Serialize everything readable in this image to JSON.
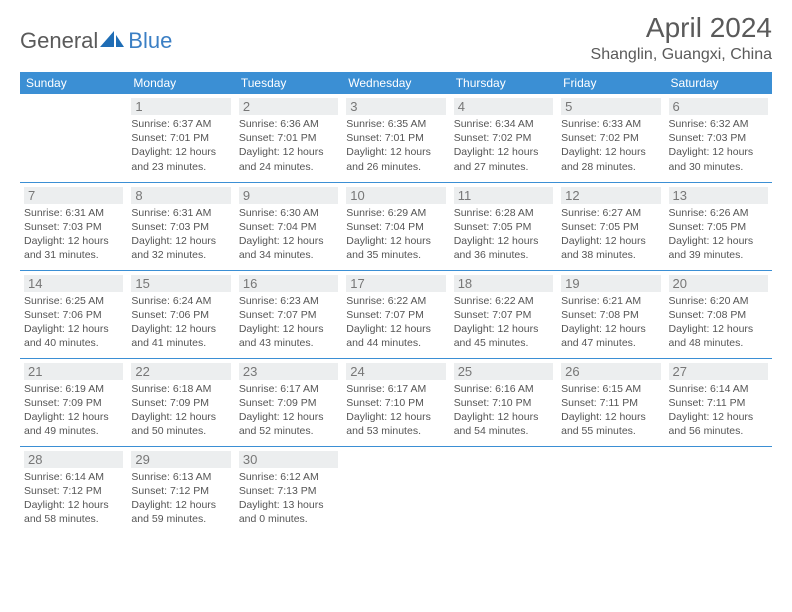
{
  "logo": {
    "part1": "General",
    "part2": "Blue",
    "brand_color": "#1f6db5"
  },
  "title": "April 2024",
  "location": "Shanglin, Guangxi, China",
  "colors": {
    "header_bg": "#3b8fd4",
    "header_text": "#ffffff",
    "border": "#3b8fd4",
    "daynum_bg": "#eceeef",
    "text": "#555555",
    "bg": "#ffffff"
  },
  "day_labels": [
    "Sunday",
    "Monday",
    "Tuesday",
    "Wednesday",
    "Thursday",
    "Friday",
    "Saturday"
  ],
  "weeks": [
    [
      null,
      {
        "n": "1",
        "sr": "Sunrise: 6:37 AM",
        "ss": "Sunset: 7:01 PM",
        "d1": "Daylight: 12 hours",
        "d2": "and 23 minutes."
      },
      {
        "n": "2",
        "sr": "Sunrise: 6:36 AM",
        "ss": "Sunset: 7:01 PM",
        "d1": "Daylight: 12 hours",
        "d2": "and 24 minutes."
      },
      {
        "n": "3",
        "sr": "Sunrise: 6:35 AM",
        "ss": "Sunset: 7:01 PM",
        "d1": "Daylight: 12 hours",
        "d2": "and 26 minutes."
      },
      {
        "n": "4",
        "sr": "Sunrise: 6:34 AM",
        "ss": "Sunset: 7:02 PM",
        "d1": "Daylight: 12 hours",
        "d2": "and 27 minutes."
      },
      {
        "n": "5",
        "sr": "Sunrise: 6:33 AM",
        "ss": "Sunset: 7:02 PM",
        "d1": "Daylight: 12 hours",
        "d2": "and 28 minutes."
      },
      {
        "n": "6",
        "sr": "Sunrise: 6:32 AM",
        "ss": "Sunset: 7:03 PM",
        "d1": "Daylight: 12 hours",
        "d2": "and 30 minutes."
      }
    ],
    [
      {
        "n": "7",
        "sr": "Sunrise: 6:31 AM",
        "ss": "Sunset: 7:03 PM",
        "d1": "Daylight: 12 hours",
        "d2": "and 31 minutes."
      },
      {
        "n": "8",
        "sr": "Sunrise: 6:31 AM",
        "ss": "Sunset: 7:03 PM",
        "d1": "Daylight: 12 hours",
        "d2": "and 32 minutes."
      },
      {
        "n": "9",
        "sr": "Sunrise: 6:30 AM",
        "ss": "Sunset: 7:04 PM",
        "d1": "Daylight: 12 hours",
        "d2": "and 34 minutes."
      },
      {
        "n": "10",
        "sr": "Sunrise: 6:29 AM",
        "ss": "Sunset: 7:04 PM",
        "d1": "Daylight: 12 hours",
        "d2": "and 35 minutes."
      },
      {
        "n": "11",
        "sr": "Sunrise: 6:28 AM",
        "ss": "Sunset: 7:05 PM",
        "d1": "Daylight: 12 hours",
        "d2": "and 36 minutes."
      },
      {
        "n": "12",
        "sr": "Sunrise: 6:27 AM",
        "ss": "Sunset: 7:05 PM",
        "d1": "Daylight: 12 hours",
        "d2": "and 38 minutes."
      },
      {
        "n": "13",
        "sr": "Sunrise: 6:26 AM",
        "ss": "Sunset: 7:05 PM",
        "d1": "Daylight: 12 hours",
        "d2": "and 39 minutes."
      }
    ],
    [
      {
        "n": "14",
        "sr": "Sunrise: 6:25 AM",
        "ss": "Sunset: 7:06 PM",
        "d1": "Daylight: 12 hours",
        "d2": "and 40 minutes."
      },
      {
        "n": "15",
        "sr": "Sunrise: 6:24 AM",
        "ss": "Sunset: 7:06 PM",
        "d1": "Daylight: 12 hours",
        "d2": "and 41 minutes."
      },
      {
        "n": "16",
        "sr": "Sunrise: 6:23 AM",
        "ss": "Sunset: 7:07 PM",
        "d1": "Daylight: 12 hours",
        "d2": "and 43 minutes."
      },
      {
        "n": "17",
        "sr": "Sunrise: 6:22 AM",
        "ss": "Sunset: 7:07 PM",
        "d1": "Daylight: 12 hours",
        "d2": "and 44 minutes."
      },
      {
        "n": "18",
        "sr": "Sunrise: 6:22 AM",
        "ss": "Sunset: 7:07 PM",
        "d1": "Daylight: 12 hours",
        "d2": "and 45 minutes."
      },
      {
        "n": "19",
        "sr": "Sunrise: 6:21 AM",
        "ss": "Sunset: 7:08 PM",
        "d1": "Daylight: 12 hours",
        "d2": "and 47 minutes."
      },
      {
        "n": "20",
        "sr": "Sunrise: 6:20 AM",
        "ss": "Sunset: 7:08 PM",
        "d1": "Daylight: 12 hours",
        "d2": "and 48 minutes."
      }
    ],
    [
      {
        "n": "21",
        "sr": "Sunrise: 6:19 AM",
        "ss": "Sunset: 7:09 PM",
        "d1": "Daylight: 12 hours",
        "d2": "and 49 minutes."
      },
      {
        "n": "22",
        "sr": "Sunrise: 6:18 AM",
        "ss": "Sunset: 7:09 PM",
        "d1": "Daylight: 12 hours",
        "d2": "and 50 minutes."
      },
      {
        "n": "23",
        "sr": "Sunrise: 6:17 AM",
        "ss": "Sunset: 7:09 PM",
        "d1": "Daylight: 12 hours",
        "d2": "and 52 minutes."
      },
      {
        "n": "24",
        "sr": "Sunrise: 6:17 AM",
        "ss": "Sunset: 7:10 PM",
        "d1": "Daylight: 12 hours",
        "d2": "and 53 minutes."
      },
      {
        "n": "25",
        "sr": "Sunrise: 6:16 AM",
        "ss": "Sunset: 7:10 PM",
        "d1": "Daylight: 12 hours",
        "d2": "and 54 minutes."
      },
      {
        "n": "26",
        "sr": "Sunrise: 6:15 AM",
        "ss": "Sunset: 7:11 PM",
        "d1": "Daylight: 12 hours",
        "d2": "and 55 minutes."
      },
      {
        "n": "27",
        "sr": "Sunrise: 6:14 AM",
        "ss": "Sunset: 7:11 PM",
        "d1": "Daylight: 12 hours",
        "d2": "and 56 minutes."
      }
    ],
    [
      {
        "n": "28",
        "sr": "Sunrise: 6:14 AM",
        "ss": "Sunset: 7:12 PM",
        "d1": "Daylight: 12 hours",
        "d2": "and 58 minutes."
      },
      {
        "n": "29",
        "sr": "Sunrise: 6:13 AM",
        "ss": "Sunset: 7:12 PM",
        "d1": "Daylight: 12 hours",
        "d2": "and 59 minutes."
      },
      {
        "n": "30",
        "sr": "Sunrise: 6:12 AM",
        "ss": "Sunset: 7:13 PM",
        "d1": "Daylight: 13 hours",
        "d2": "and 0 minutes."
      },
      null,
      null,
      null,
      null
    ]
  ]
}
